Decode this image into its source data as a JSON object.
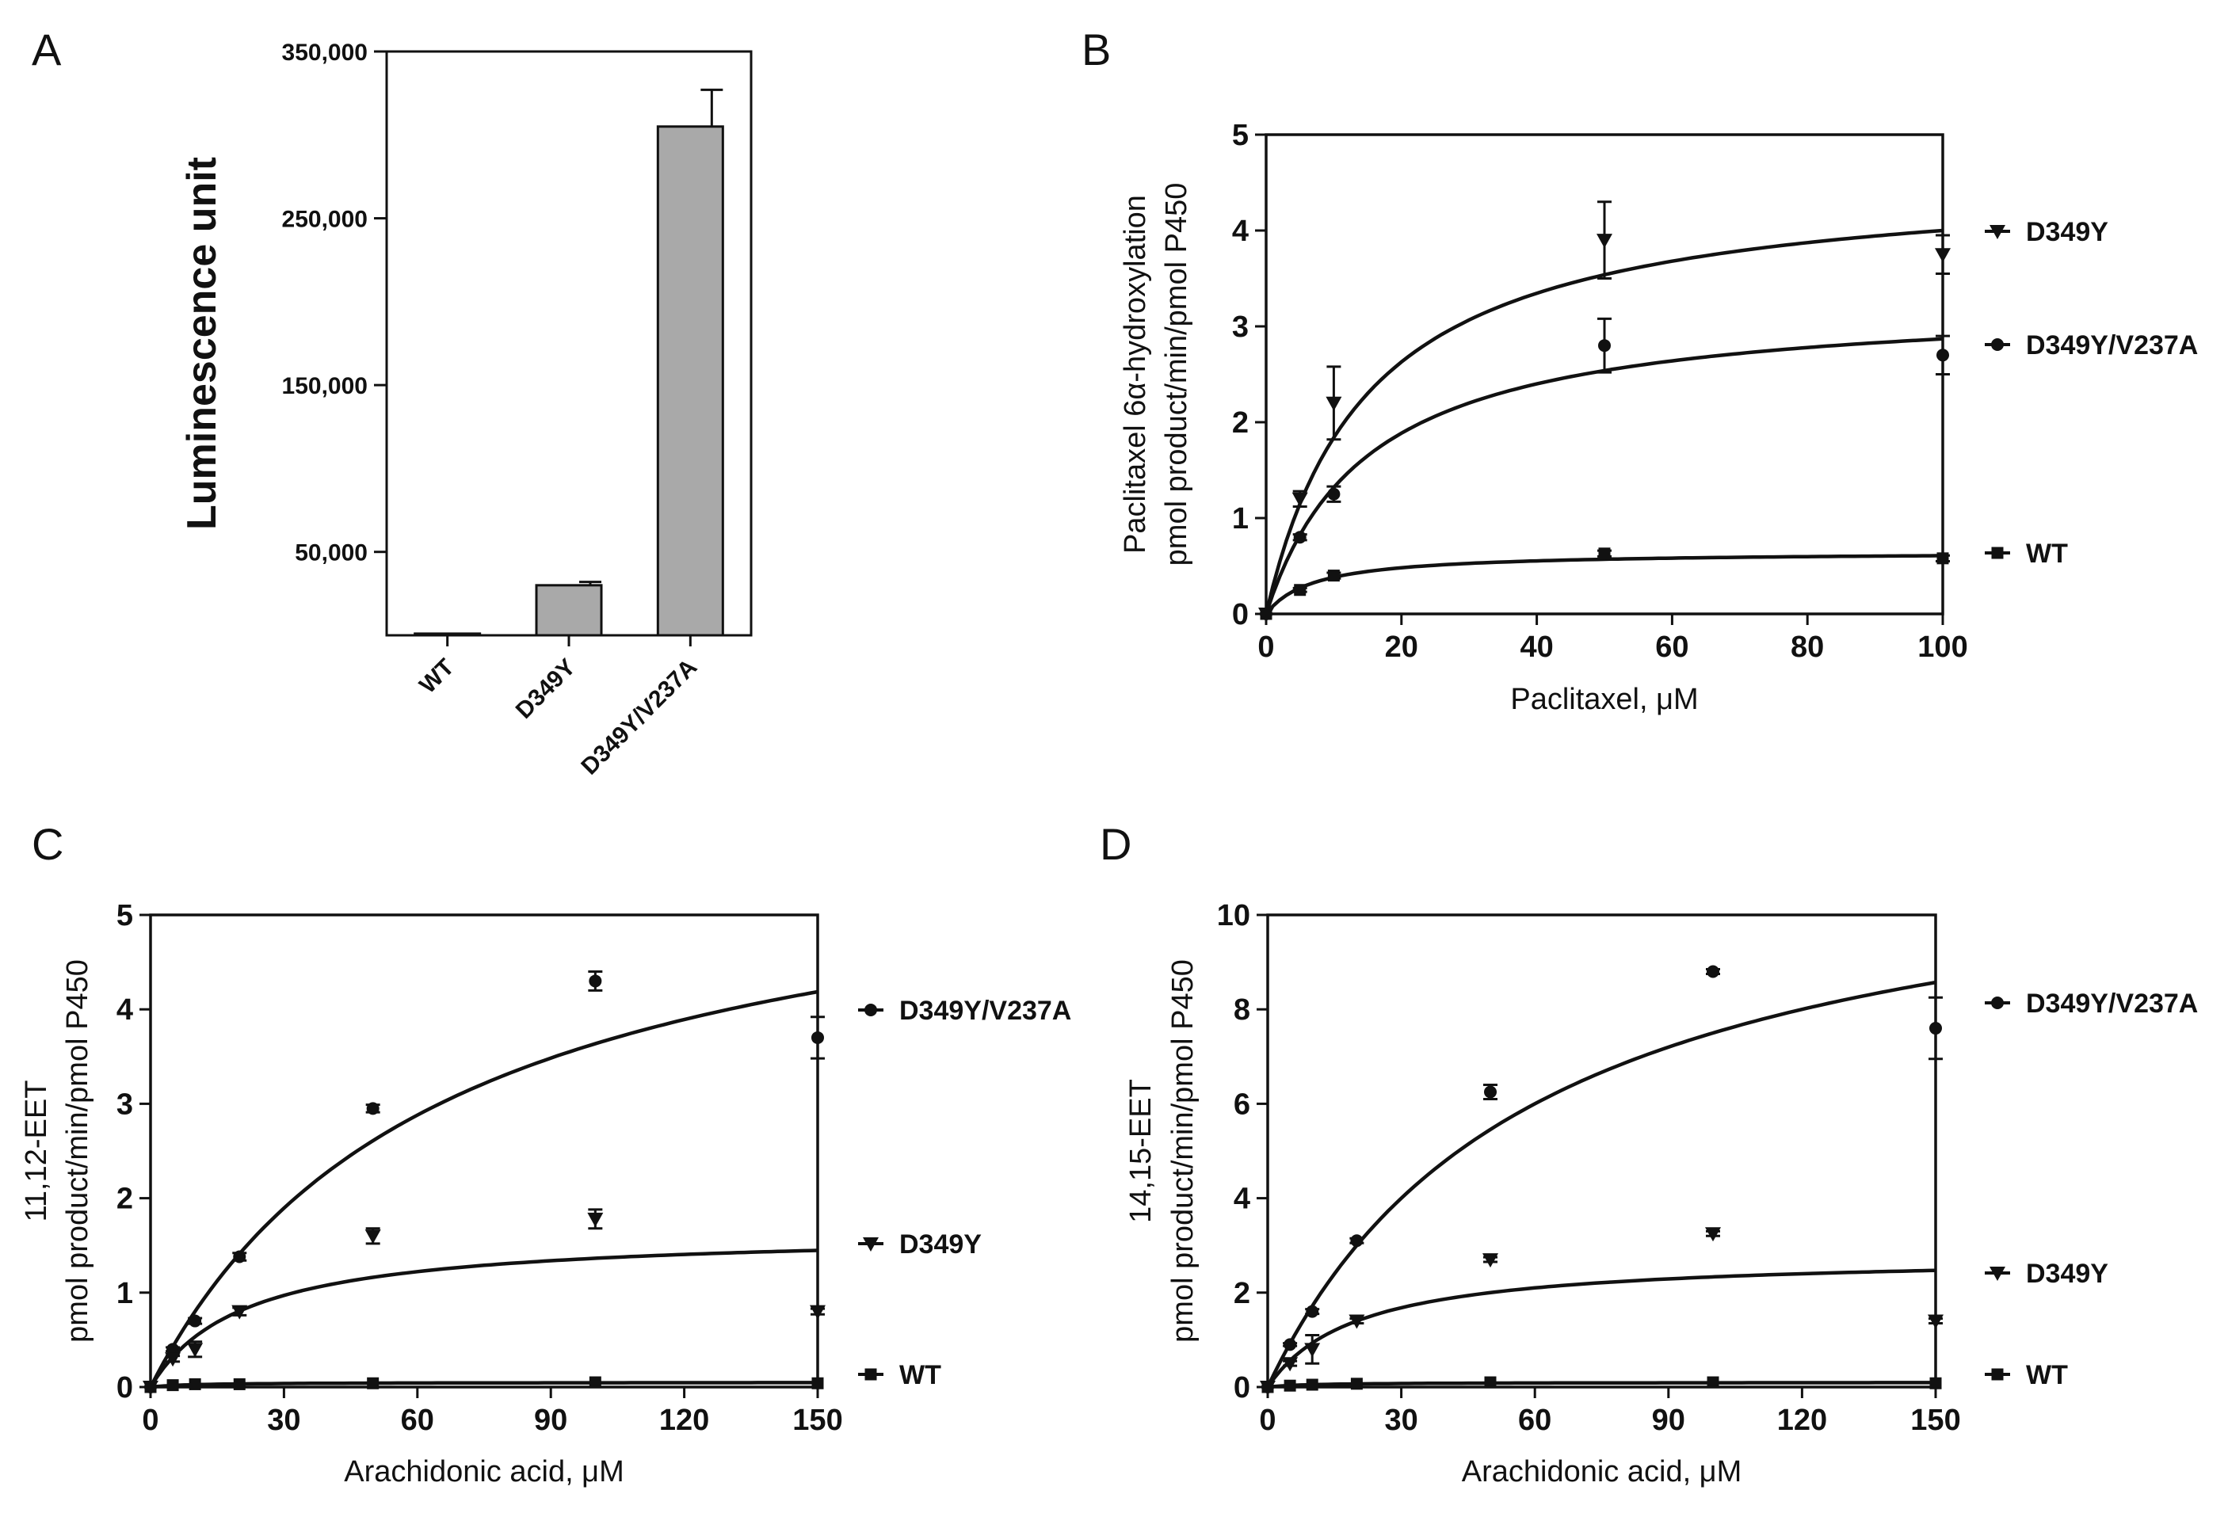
{
  "chart_data": [
    {
      "panel": "A",
      "type": "bar",
      "title": "",
      "ylabel": "Luminescence unit",
      "xlabel": "",
      "ylim": [
        0,
        350000
      ],
      "yticks": [
        50000,
        150000,
        250000,
        350000
      ],
      "ytick_labels": [
        "50,000",
        "150,000",
        "250,000",
        "350,000"
      ],
      "categories": [
        "WT",
        "D349Y",
        "D349Y/V237A"
      ],
      "values": [
        1000,
        30000,
        305000
      ],
      "errors": [
        0,
        2000,
        22000
      ],
      "bar_color": "#a9a9a9"
    },
    {
      "panel": "B",
      "type": "scatter",
      "xlabel": "Paclitaxel, μM",
      "ylabel_lines": [
        "Paclitaxel 6α-hydroxylation",
        "pmol product/min/pmol P450"
      ],
      "xlim": [
        0,
        100
      ],
      "ylim": [
        0,
        5
      ],
      "xticks": [
        0,
        20,
        40,
        60,
        80,
        100
      ],
      "yticks": [
        0,
        1,
        2,
        3,
        4,
        5
      ],
      "series": [
        {
          "name": "D349Y",
          "marker": "triangle-down",
          "x": [
            0,
            5,
            10,
            50,
            100
          ],
          "y": [
            0,
            1.2,
            2.2,
            3.9,
            3.75
          ],
          "err": [
            0,
            0.08,
            0.38,
            0.4,
            0.2
          ],
          "fit": {
            "vmax": 4.6,
            "km": 15
          }
        },
        {
          "name": "D349Y/V237A",
          "marker": "circle",
          "x": [
            0,
            5,
            10,
            50,
            100
          ],
          "y": [
            0,
            0.8,
            1.25,
            2.8,
            2.7
          ],
          "err": [
            0,
            0.03,
            0.08,
            0.28,
            0.2
          ],
          "fit": {
            "vmax": 3.3,
            "km": 15
          }
        },
        {
          "name": "WT",
          "marker": "square",
          "x": [
            0,
            5,
            10,
            50,
            100
          ],
          "y": [
            0,
            0.25,
            0.4,
            0.63,
            0.58
          ],
          "err": [
            0,
            0.02,
            0.03,
            0.03,
            0.03
          ],
          "fit": {
            "vmax": 0.65,
            "km": 7
          }
        }
      ]
    },
    {
      "panel": "C",
      "type": "scatter",
      "xlabel": "Arachidonic acid, μM",
      "ylabel_lines": [
        "11,12-EET",
        "pmol product/min/pmol P450"
      ],
      "xlim": [
        0,
        150
      ],
      "ylim": [
        0,
        5
      ],
      "xticks": [
        0,
        30,
        60,
        90,
        120,
        150
      ],
      "yticks": [
        0,
        1,
        2,
        3,
        4,
        5
      ],
      "series": [
        {
          "name": "D349Y/V237A",
          "marker": "circle",
          "x": [
            0,
            5,
            10,
            20,
            50,
            100,
            150
          ],
          "y": [
            0,
            0.4,
            0.7,
            1.38,
            2.95,
            4.3,
            3.7
          ],
          "err": [
            0,
            0.02,
            0.03,
            0.04,
            0.04,
            0.1,
            0.22
          ],
          "fit": {
            "vmax": 6.0,
            "km": 65
          }
        },
        {
          "name": "D349Y",
          "marker": "triangle-down",
          "x": [
            0,
            5,
            10,
            20,
            50,
            100,
            150
          ],
          "y": [
            0,
            0.3,
            0.4,
            0.8,
            1.6,
            1.78,
            0.8
          ],
          "err": [
            0,
            0.03,
            0.08,
            0.04,
            0.08,
            0.1,
            0.03
          ],
          "fit": {
            "vmax": 1.65,
            "km": 21
          }
        },
        {
          "name": "WT",
          "marker": "square",
          "x": [
            0,
            5,
            10,
            20,
            50,
            100,
            150
          ],
          "y": [
            0,
            0.02,
            0.03,
            0.03,
            0.04,
            0.05,
            0.04
          ],
          "err": [
            0,
            0,
            0,
            0,
            0,
            0,
            0
          ],
          "fit": {
            "vmax": 0.05,
            "km": 10
          }
        }
      ]
    },
    {
      "panel": "D",
      "type": "scatter",
      "xlabel": "Arachidonic acid, μM",
      "ylabel_lines": [
        "14,15-EET",
        "pmol product/min/pmol P450"
      ],
      "xlim": [
        0,
        150
      ],
      "ylim": [
        0,
        10
      ],
      "xticks": [
        0,
        30,
        60,
        90,
        120,
        150
      ],
      "yticks": [
        0,
        2,
        4,
        6,
        8,
        10
      ],
      "series": [
        {
          "name": "D349Y/V237A",
          "marker": "circle",
          "x": [
            0,
            5,
            10,
            20,
            50,
            100,
            150
          ],
          "y": [
            0,
            0.9,
            1.6,
            3.1,
            6.25,
            8.8,
            7.6
          ],
          "err": [
            0,
            0.03,
            0.05,
            0.05,
            0.15,
            0.05,
            0.65
          ],
          "fit": {
            "vmax": 12.0,
            "km": 60
          }
        },
        {
          "name": "D349Y",
          "marker": "triangle-down",
          "x": [
            0,
            5,
            10,
            20,
            50,
            100,
            150
          ],
          "y": [
            0,
            0.5,
            0.8,
            1.4,
            2.7,
            3.25,
            1.4
          ],
          "err": [
            0,
            0.05,
            0.3,
            0.05,
            0.05,
            0.05,
            0.05
          ],
          "fit": {
            "vmax": 2.8,
            "km": 20
          }
        },
        {
          "name": "WT",
          "marker": "square",
          "x": [
            0,
            5,
            10,
            20,
            50,
            100,
            150
          ],
          "y": [
            0,
            0.03,
            0.05,
            0.07,
            0.1,
            0.1,
            0.08
          ],
          "err": [
            0,
            0,
            0,
            0,
            0,
            0,
            0
          ],
          "fit": {
            "vmax": 0.1,
            "km": 10
          }
        }
      ]
    }
  ]
}
